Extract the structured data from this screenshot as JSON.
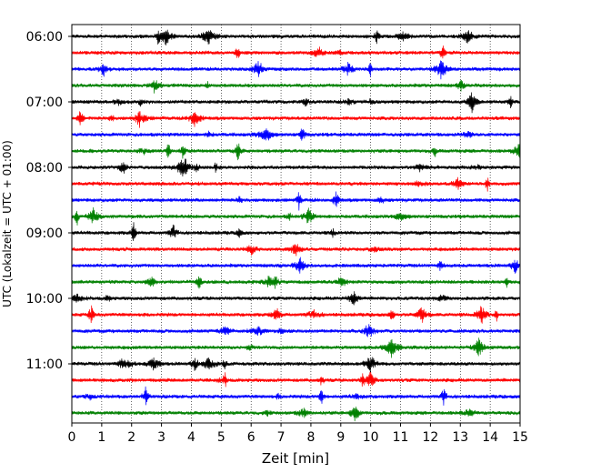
{
  "chart_data": {
    "type": "line",
    "title": "",
    "xlabel": "Zeit  [min]",
    "ylabel": "UTC (Lokalzeit = UTC + 01:00)",
    "xlim": [
      0,
      15
    ],
    "x_ticks": [
      0,
      1,
      2,
      3,
      4,
      5,
      6,
      7,
      8,
      9,
      10,
      11,
      12,
      13,
      14,
      15
    ],
    "y_tick_labels": [
      "06:00",
      "07:00",
      "08:00",
      "09:00",
      "10:00",
      "11:00"
    ],
    "grid": "vertical dotted lines at each minute",
    "legend": "none",
    "trace_interval_minutes": 15,
    "trace_start_times": [
      "06:00",
      "06:15",
      "06:30",
      "06:45",
      "07:00",
      "07:15",
      "07:30",
      "07:45",
      "08:00",
      "08:15",
      "08:30",
      "08:45",
      "09:00",
      "09:15",
      "09:30",
      "09:45",
      "10:00",
      "10:15",
      "10:30",
      "10:45",
      "11:00",
      "11:15",
      "11:30",
      "11:45"
    ],
    "trace_color_cycle": [
      "#000000",
      "#ff0000",
      "#0000ff",
      "#008000"
    ],
    "series_note": "Seismogram helicorder: 24 continuous traces of 15 min each; amplitude values not labeled"
  }
}
